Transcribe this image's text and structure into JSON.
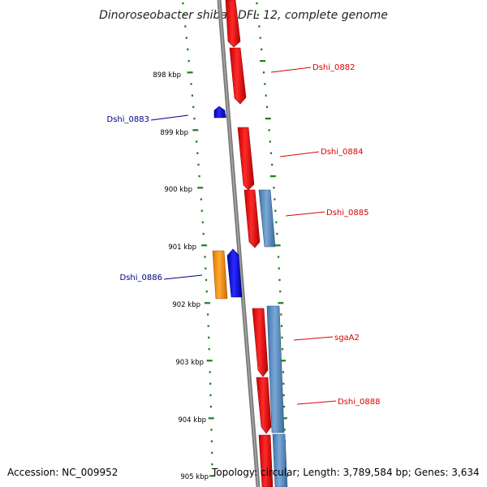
{
  "title": "Dinoroseobacter shibae DFL 12, complete genome",
  "footer": {
    "accession": "Accession: NC_009952",
    "stats": "Topology: circular; Length: 3,789,584 bp; Genes: 3,634"
  },
  "colors": {
    "backbone": "#7a7a7a",
    "tick": "#1e7d1e",
    "forward_gene": "#ee1111",
    "reverse_gene": "#1a1ad6",
    "rna_gene": "#5b8fc0",
    "other_gene": "#ff9a10",
    "label_forward": "#dd0000",
    "label_reverse": "#00008b"
  },
  "scale": {
    "unit": "kbp",
    "labels": [
      "898 kbp",
      "899 kbp",
      "900 kbp",
      "901 kbp",
      "902 kbp",
      "903 kbp",
      "904 kbp",
      "905 kbp"
    ]
  },
  "labeled_genes": [
    {
      "name": "Dshi_0882",
      "strand": "forward"
    },
    {
      "name": "Dshi_0883",
      "strand": "reverse"
    },
    {
      "name": "Dshi_0884",
      "strand": "forward"
    },
    {
      "name": "Dshi_0885",
      "strand": "forward"
    },
    {
      "name": "Dshi_0886",
      "strand": "reverse"
    },
    {
      "name": "sgaA2",
      "strand": "forward"
    },
    {
      "name": "Dshi_0888",
      "strand": "forward"
    }
  ]
}
